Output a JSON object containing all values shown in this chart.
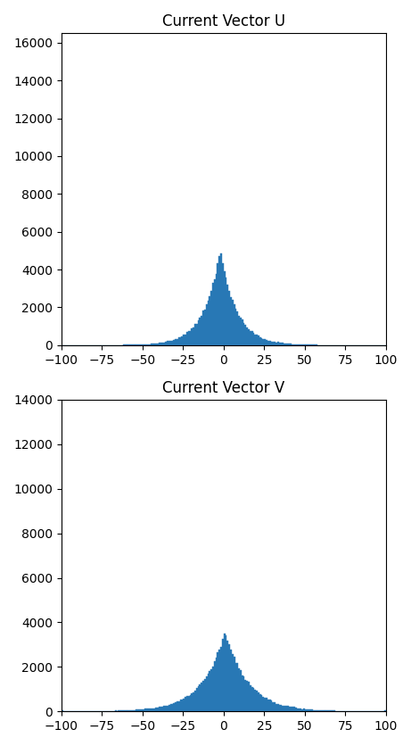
{
  "title_u": "Current Vector U",
  "title_v": "Current Vector V",
  "bar_color": "#2878b5",
  "xlim": [
    -100,
    100
  ],
  "xticks": [
    -100,
    -75,
    -50,
    -25,
    0,
    25,
    50,
    75,
    100
  ],
  "ylim_u": [
    0,
    16500
  ],
  "ylim_v": [
    0,
    14000
  ],
  "yticks_u": [
    0,
    2000,
    4000,
    6000,
    8000,
    10000,
    12000,
    14000,
    16000
  ],
  "yticks_v": [
    0,
    2000,
    4000,
    6000,
    8000,
    10000,
    12000,
    14000
  ],
  "u_mean": -2.0,
  "u_scale": 10.0,
  "u_n": 100000,
  "v_mean": 1.0,
  "v_scale": 14.0,
  "v_n": 100000,
  "bins": 200,
  "figsize": [
    4.61,
    8.36
  ],
  "dpi": 100
}
